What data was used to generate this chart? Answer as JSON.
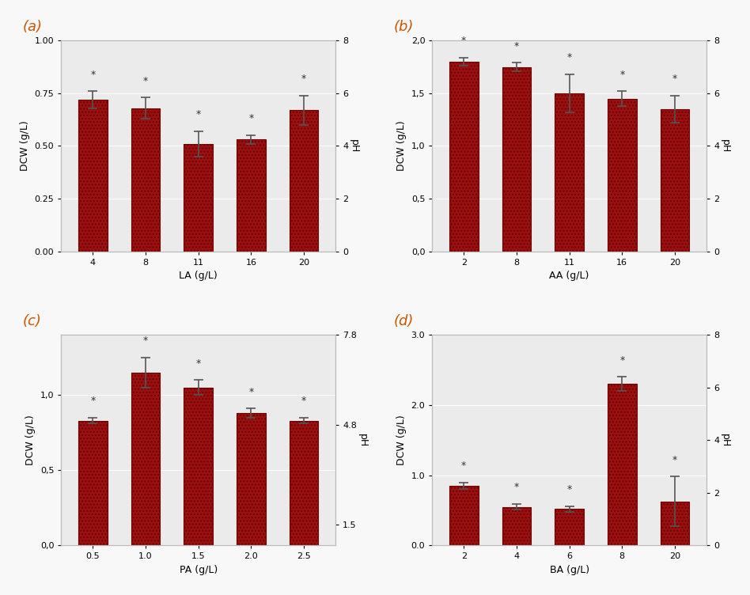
{
  "panels": [
    {
      "label": "(a)",
      "xlabel": "LA (g/L)",
      "ylabel": "DCW (g/L)",
      "ylabel_right": "pH",
      "x_categories": [
        "4",
        "8",
        "11",
        "16",
        "20"
      ],
      "bar_values": [
        0.72,
        0.68,
        0.51,
        0.53,
        0.67
      ],
      "bar_errors": [
        0.04,
        0.05,
        0.06,
        0.02,
        0.07
      ],
      "ylim_left": [
        0.0,
        1.0
      ],
      "ylim_right": [
        0,
        8
      ],
      "yticks_left": [
        0.0,
        0.25,
        0.5,
        0.75,
        1.0
      ],
      "yticks_right": [
        0,
        2,
        4,
        6,
        8
      ],
      "ytick_labels_left": [
        "0.00",
        "0.25",
        "0.50",
        "0.75",
        "1.00"
      ],
      "ytick_labels_right": [
        "0",
        "2",
        "4",
        "6",
        "8"
      ]
    },
    {
      "label": "(b)",
      "xlabel": "AA (g/L)",
      "ylabel": "DCW (g/L)",
      "ylabel_right": "pH",
      "x_categories": [
        "2",
        "8",
        "11",
        "16",
        "20"
      ],
      "bar_values": [
        1.8,
        1.75,
        1.5,
        1.45,
        1.35
      ],
      "bar_errors": [
        0.04,
        0.04,
        0.18,
        0.07,
        0.13
      ],
      "ylim_left": [
        0.0,
        2.0
      ],
      "ylim_right": [
        0,
        8
      ],
      "yticks_left": [
        0.0,
        0.5,
        1.0,
        1.5,
        2.0
      ],
      "yticks_right": [
        0,
        2,
        4,
        6,
        8
      ],
      "ytick_labels_left": [
        "0,0",
        "0,5",
        "1,0",
        "1,5",
        "2,0"
      ],
      "ytick_labels_right": [
        "0",
        "2",
        "4",
        "6",
        "8"
      ]
    },
    {
      "label": "(c)",
      "xlabel": "PA (g/L)",
      "ylabel": "DCW (g/L)",
      "ylabel_right": "pH",
      "x_categories": [
        "0.5",
        "1.0",
        "1.5",
        "2.0",
        "2.5"
      ],
      "bar_values": [
        0.83,
        1.15,
        1.05,
        0.88,
        0.83
      ],
      "bar_errors": [
        0.02,
        0.1,
        0.05,
        0.03,
        0.02
      ],
      "ylim_left": [
        0.0,
        1.4
      ],
      "ylim_right": [
        0.8,
        7.8
      ],
      "yticks_left": [
        0.0,
        0.5,
        1.0
      ],
      "yticks_right": [
        1.5,
        4.8,
        7.8
      ],
      "ytick_labels_left": [
        "0,0",
        "0,5",
        "1,0"
      ],
      "ytick_labels_right": [
        "1.5",
        "4.8",
        "7.8"
      ]
    },
    {
      "label": "(d)",
      "xlabel": "BA (g/L)",
      "ylabel": "DCW (g/L)",
      "ylabel_right": "pH",
      "x_categories": [
        "2",
        "4",
        "6",
        "8",
        "20"
      ],
      "bar_values": [
        0.85,
        0.55,
        0.52,
        2.3,
        0.63
      ],
      "bar_errors": [
        0.05,
        0.04,
        0.04,
        0.1,
        0.35
      ],
      "ylim_left": [
        0.0,
        3.0
      ],
      "ylim_right": [
        0,
        8
      ],
      "yticks_left": [
        0.0,
        1.0,
        2.0,
        3.0
      ],
      "yticks_right": [
        0,
        2,
        4,
        6,
        8
      ],
      "ytick_labels_left": [
        "0.0",
        "1.0",
        "2.0",
        "3.0"
      ],
      "ytick_labels_right": [
        "0",
        "2",
        "4",
        "6",
        "8"
      ]
    }
  ],
  "bar_color_face": "#9B1010",
  "bar_color_edge": "#6B0000",
  "error_color": "#555555",
  "marker_char": "*",
  "marker_color": "#333333",
  "marker_fontsize": 9,
  "figure_facecolor": "#f8f8f8",
  "axes_facecolor": "#ebebeb",
  "spine_color": "#bbbbbb",
  "label_color": "#cc5500",
  "label_fontsize": 13
}
